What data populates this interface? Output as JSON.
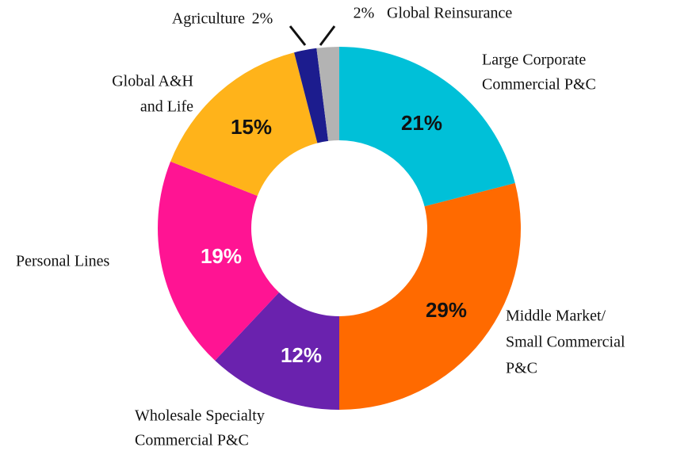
{
  "chart_data": {
    "type": "donut",
    "categories": [
      [
        "Large Corporate",
        "Commercial P&C"
      ],
      [
        "Middle Market/",
        "Small Commercial",
        "P&C"
      ],
      [
        "Wholesale Specialty",
        "Commercial P&C"
      ],
      [
        "Personal Lines"
      ],
      [
        "Global A&H",
        "and Life"
      ],
      [
        "Agriculture"
      ],
      [
        "Global Reinsurance"
      ]
    ],
    "values": [
      21,
      29,
      12,
      19,
      15,
      2,
      2
    ],
    "value_labels": [
      "21%",
      "29%",
      "12%",
      "19%",
      "15%",
      "2%",
      "2%"
    ],
    "colors": [
      "#00c0d8",
      "#ff6a00",
      "#6a22ae",
      "#ff1493",
      "#ffb31a",
      "#1c1c8e",
      "#b3b3b3"
    ],
    "label_colors": [
      "#111111",
      "#111111",
      "#ffffff",
      "#ffffff",
      "#111111",
      "#111111",
      "#111111"
    ]
  }
}
